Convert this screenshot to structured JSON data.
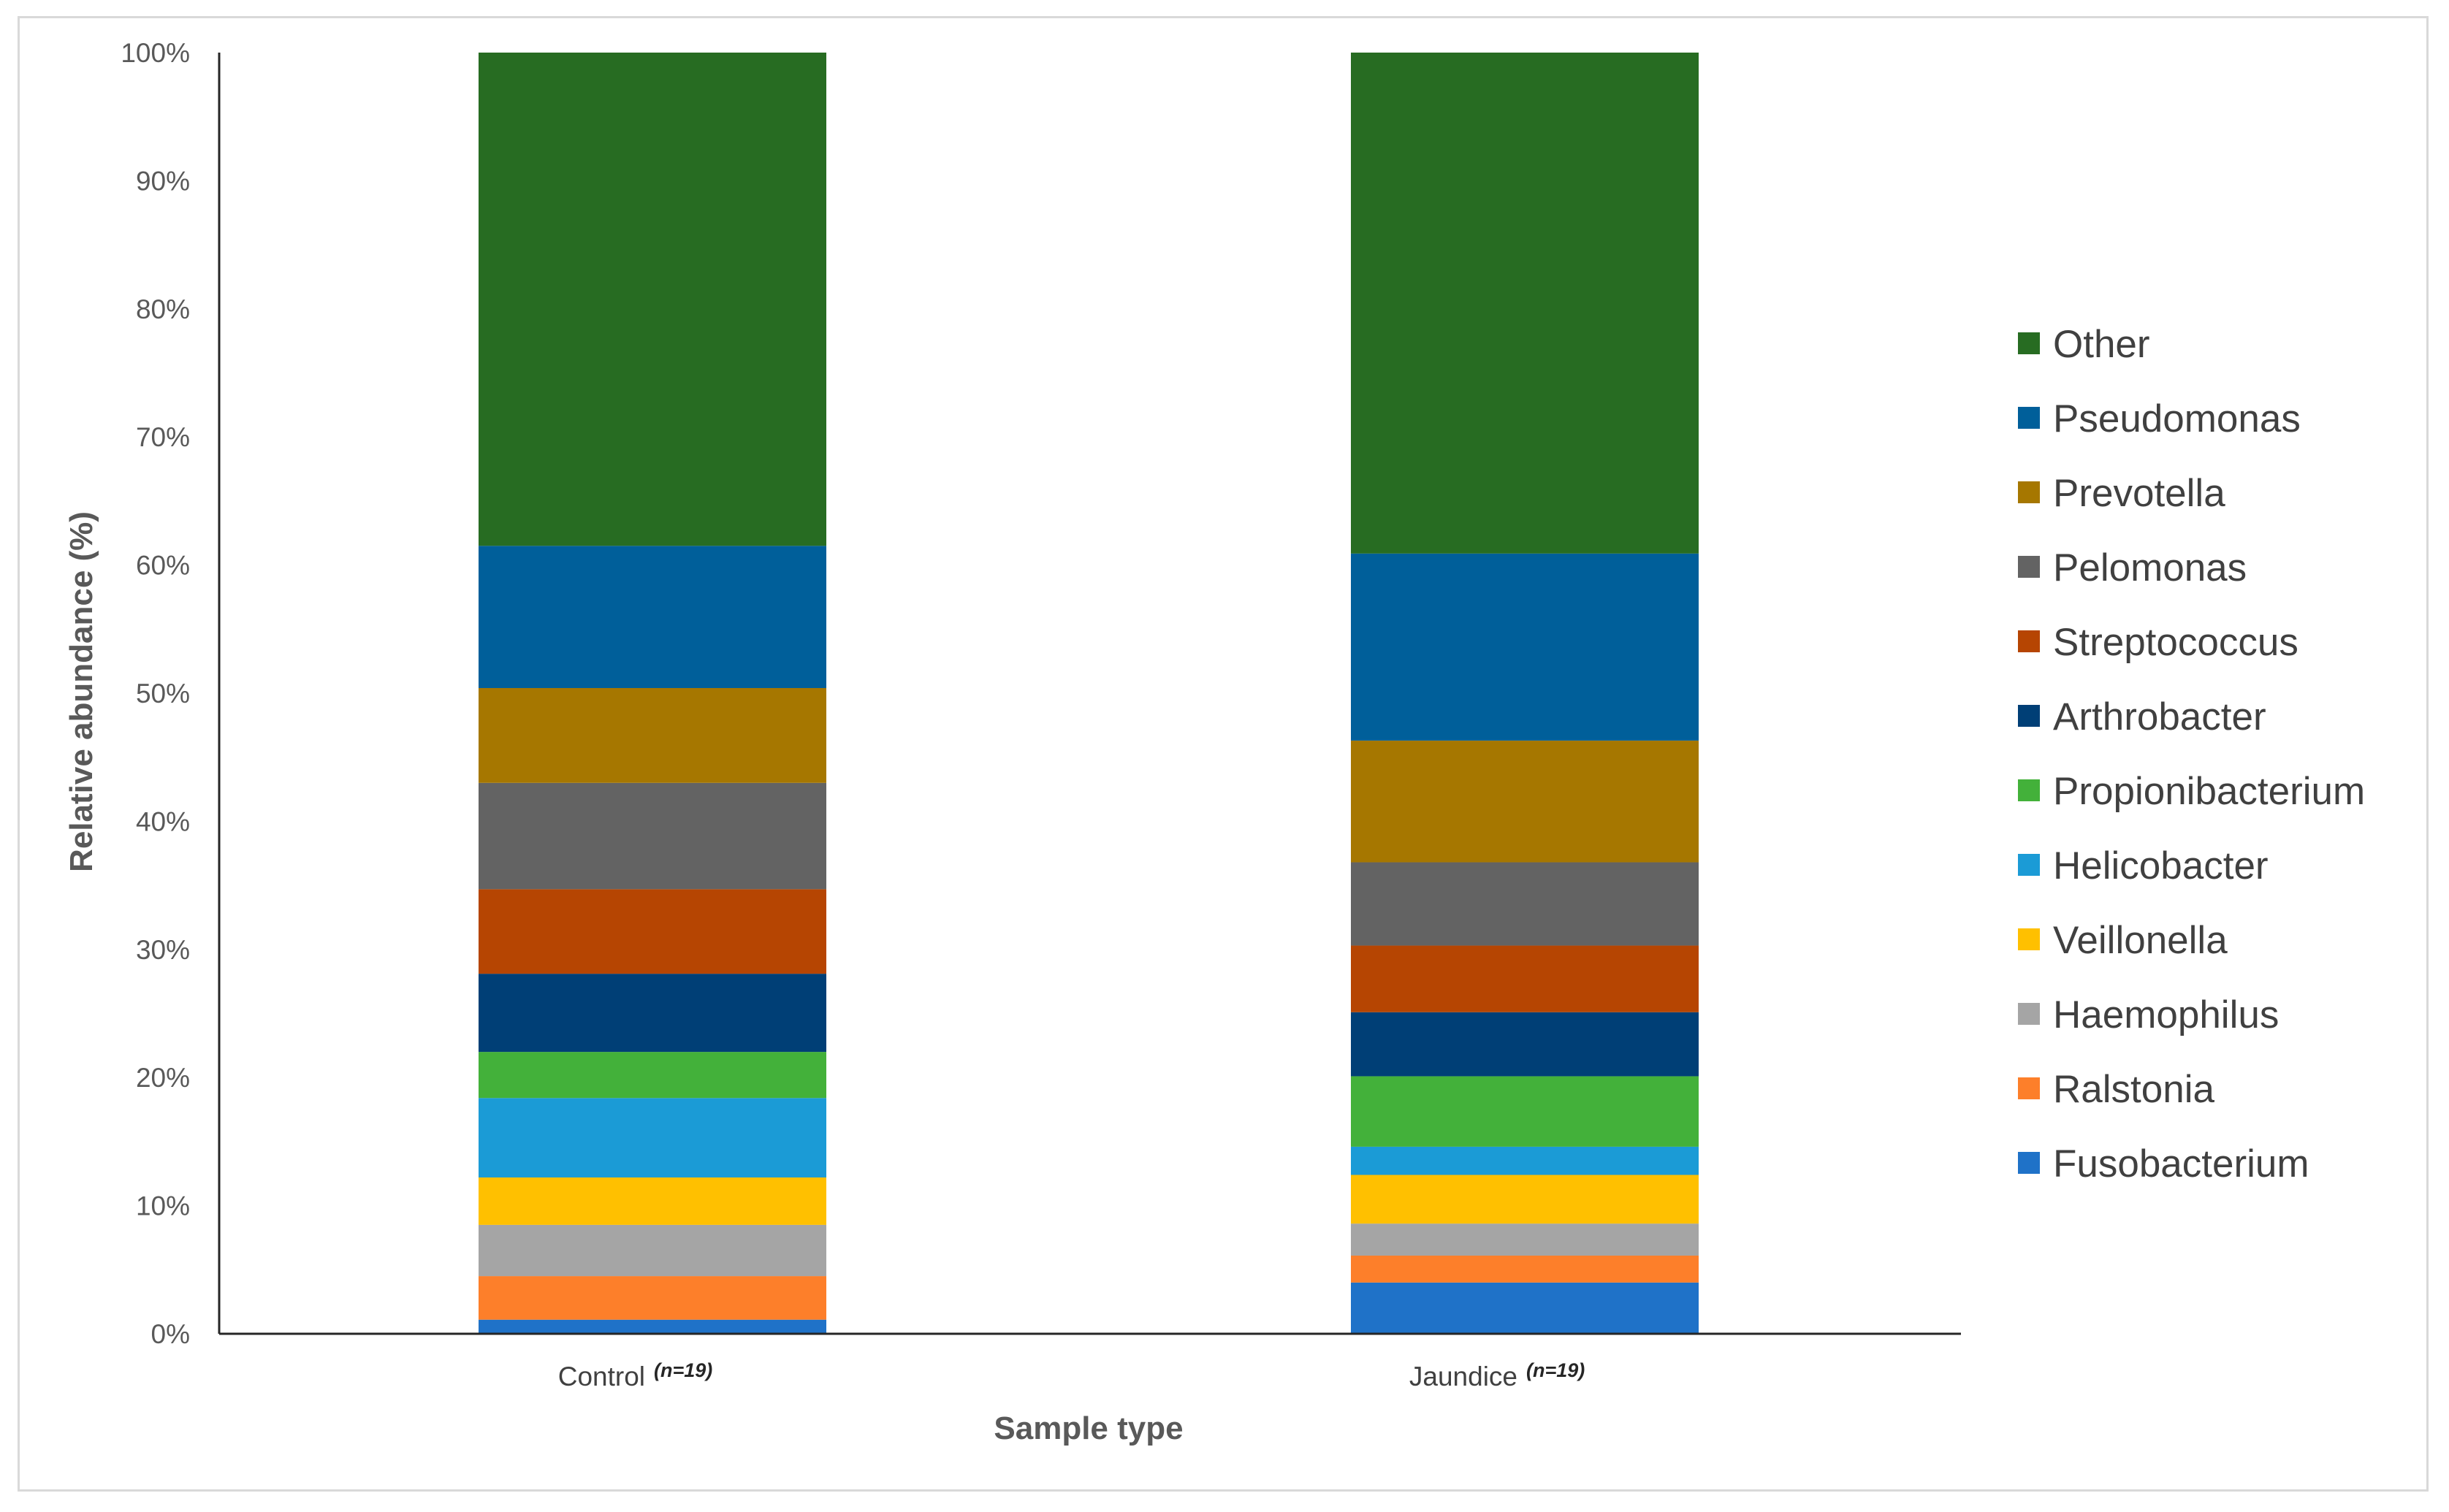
{
  "chart_data": {
    "type": "bar",
    "stacked": true,
    "percent_stacked": true,
    "title": "",
    "xlabel": "Sample type",
    "ylabel": "Relative abundance (%)",
    "ylim": [
      0,
      100
    ],
    "yticks": [
      "0%",
      "10%",
      "20%",
      "30%",
      "40%",
      "50%",
      "60%",
      "70%",
      "80%",
      "90%",
      "100%"
    ],
    "grid": false,
    "legend_position": "right",
    "categories": [
      {
        "label": "Control",
        "n": "(n=19)"
      },
      {
        "label": "Jaundice",
        "n": "(n=19)"
      }
    ],
    "series": [
      {
        "name": "Fusobacterium",
        "color": "#1f72c8",
        "values": [
          1.1,
          4.0
        ]
      },
      {
        "name": "Ralstonia",
        "color": "#fd7f2a",
        "values": [
          3.4,
          2.1
        ]
      },
      {
        "name": "Haemophilus",
        "color": "#a5a5a5",
        "values": [
          4.0,
          2.5
        ]
      },
      {
        "name": "Veillonella",
        "color": "#ffc000",
        "values": [
          3.7,
          3.8
        ]
      },
      {
        "name": "Helicobacter",
        "color": "#1b9bd6",
        "values": [
          6.2,
          2.2
        ]
      },
      {
        "name": "Propionibacterium",
        "color": "#43b13a",
        "values": [
          3.6,
          5.5
        ]
      },
      {
        "name": "Arthrobacter",
        "color": "#003f76",
        "values": [
          6.1,
          5.0
        ]
      },
      {
        "name": "Streptococcus",
        "color": "#b64502",
        "values": [
          6.6,
          5.2
        ]
      },
      {
        "name": "Pelomonas",
        "color": "#636363",
        "values": [
          8.3,
          6.5
        ]
      },
      {
        "name": "Prevotella",
        "color": "#a67700",
        "values": [
          7.4,
          9.5
        ]
      },
      {
        "name": "Pseudomonas",
        "color": "#005f9a",
        "values": [
          11.1,
          14.6
        ]
      },
      {
        "name": "Other",
        "color": "#276c22",
        "values": [
          38.5,
          39.1
        ]
      }
    ]
  }
}
